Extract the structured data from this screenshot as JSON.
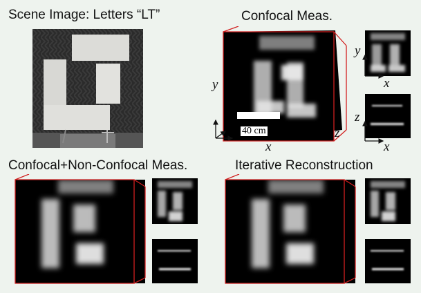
{
  "titles": {
    "scene": "Scene Image: Letters “LT”",
    "confocal": "Confocal Meas.",
    "combined": "Confocal+Non-Confocal Meas.",
    "iterative": "Iterative Reconstruction"
  },
  "axes": {
    "x": "x",
    "y": "y",
    "z": "z"
  },
  "scale_bar": "40 cm",
  "colors": {
    "background": "#eef3ee",
    "cube_edge": "#d21f1f",
    "volume": "#000000"
  }
}
